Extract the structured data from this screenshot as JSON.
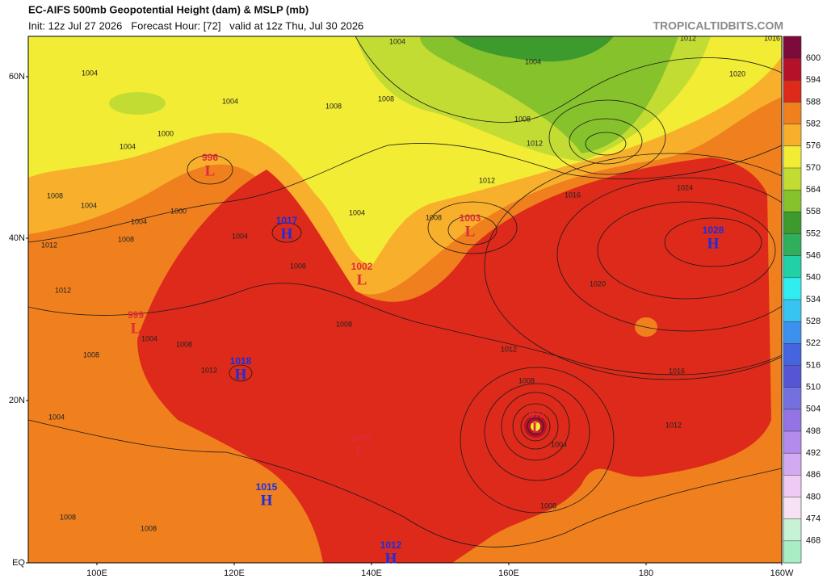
{
  "header": {
    "title": "EC-AIFS 500mb Geopotential Height (dam) & MSLP (mb)",
    "subtitle": "Init: 12z Jul 27 2026   Forecast Hour: [72]   valid at 12z Thu, Jul 30 2026",
    "source": "TROPICALTIDBITS.COM"
  },
  "map": {
    "lat_labels": [
      "60N",
      "40N",
      "20N",
      "EQ"
    ],
    "lon_labels": [
      "100E",
      "120E",
      "140E",
      "160E",
      "180",
      "160W"
    ],
    "pressure_centers": [
      {
        "symbol": "L",
        "value": 996
      },
      {
        "symbol": "H",
        "value": 1017
      },
      {
        "symbol": "L",
        "value": 1003
      },
      {
        "symbol": "L",
        "value": 1002
      },
      {
        "symbol": "H",
        "value": 1028
      },
      {
        "symbol": "L",
        "value": 999
      },
      {
        "symbol": "H",
        "value": 1018
      },
      {
        "symbol": "L",
        "value": 972
      },
      {
        "symbol": "L",
        "value": 1008
      },
      {
        "symbol": "H",
        "value": 1015
      },
      {
        "symbol": "H",
        "value": 1012
      }
    ],
    "isobar_labels": [
      1004,
      1012,
      1016,
      1004,
      1004,
      1004,
      1008,
      1008,
      1008,
      1012,
      1004,
      1000,
      1020,
      1008,
      1004,
      1000,
      1004,
      1008,
      1004,
      1008,
      1004,
      1008,
      1012,
      1016,
      1024,
      1012,
      1012,
      1020,
      1004,
      1008,
      1008,
      1012,
      1008,
      1012,
      1016,
      1008,
      1004,
      1012,
      1004,
      1008,
      1008,
      1008
    ]
  },
  "colorbar": {
    "levels": [
      600,
      594,
      588,
      582,
      576,
      570,
      564,
      558,
      552,
      546,
      540,
      534,
      528,
      522,
      516,
      510,
      504,
      498,
      492,
      486,
      480,
      474,
      468
    ],
    "colors": [
      "#7c0a3a",
      "#b5122a",
      "#dd2a1a",
      "#f0801e",
      "#f8b02c",
      "#f2ec34",
      "#c2dc34",
      "#86c22c",
      "#3d9a2c",
      "#2fae5c",
      "#22d0a8",
      "#30eef0",
      "#38c4f0",
      "#3c90ee",
      "#4464e0",
      "#5656d4",
      "#7470e0",
      "#9474e4",
      "#b48aec",
      "#d2aaf2",
      "#eecaf4",
      "#f6e2f2",
      "#c6f2d6",
      "#a8eec4"
    ]
  }
}
